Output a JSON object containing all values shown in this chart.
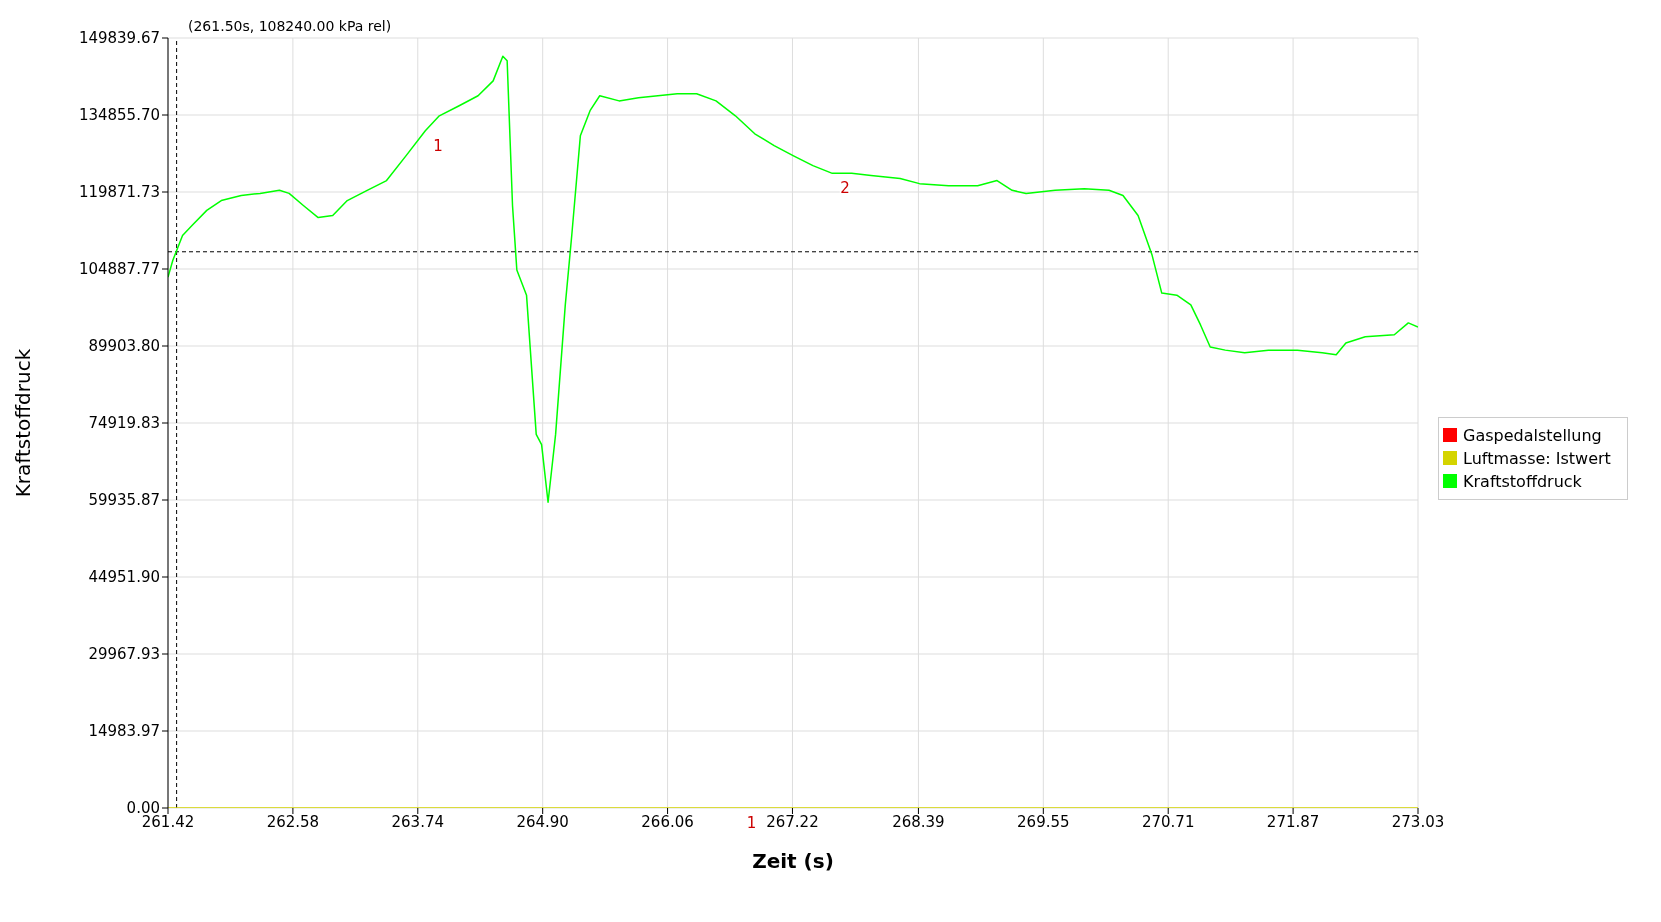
{
  "chart_data": {
    "type": "line",
    "xlabel": "Zeit (s)",
    "ylabel": "Kraftstoffdruck",
    "annotations": [
      "(261.50s, 108240.00 kPa rel)",
      {
        "text": "1",
        "x": 263.81,
        "y": 131800
      },
      {
        "text": "2",
        "x": 267.59,
        "y": 123500
      },
      {
        "text": "1",
        "x": 266.72,
        "y": 0
      }
    ],
    "xlim": [
      261.42,
      273.03
    ],
    "xticks": [
      {
        "value": 261.42,
        "label": "261.42"
      },
      {
        "value": 262.58,
        "label": "262.58"
      },
      {
        "value": 263.74,
        "label": "263.74"
      },
      {
        "value": 264.9,
        "label": "264.90"
      },
      {
        "value": 266.06,
        "label": "266.06"
      },
      {
        "value": 267.22,
        "label": "267.22"
      },
      {
        "value": 268.39,
        "label": "268.39"
      },
      {
        "value": 269.55,
        "label": "269.55"
      },
      {
        "value": 270.71,
        "label": "270.71"
      },
      {
        "value": 271.87,
        "label": "271.87"
      },
      {
        "value": 273.03,
        "label": "273.03"
      }
    ],
    "ylim": [
      0,
      149839.67
    ],
    "yticks": [
      {
        "value": 0,
        "label": "0.00"
      },
      {
        "value": 14983.97,
        "label": "14983.97"
      },
      {
        "value": 29967.93,
        "label": "29967.93"
      },
      {
        "value": 44951.9,
        "label": "44951.90"
      },
      {
        "value": 59935.87,
        "label": "59935.87"
      },
      {
        "value": 74919.83,
        "label": "74919.83"
      },
      {
        "value": 89903.8,
        "label": "89903.80"
      },
      {
        "value": 104887.77,
        "label": "104887.77"
      },
      {
        "value": 119871.73,
        "label": "119871.73"
      },
      {
        "value": 134855.7,
        "label": "134855.70"
      },
      {
        "value": 149839.67,
        "label": "149839.67"
      }
    ],
    "grid": true,
    "legend": "right",
    "marker": "none",
    "line_style": "solid",
    "ref_lines": [
      {
        "axis": "x",
        "value": 261.5,
        "color": "#000000",
        "line_style": "dashed"
      },
      {
        "axis": "y",
        "value": 108240,
        "color": "#000000",
        "line_style": "dashed"
      }
    ],
    "series": [
      {
        "name": "Gaspedalstellung",
        "color": "#ff0000"
      },
      {
        "name": "Luftmasse: Istwert",
        "color": "#d4d400",
        "x": [
          261.42,
          273.03
        ],
        "values": [
          0,
          0
        ]
      },
      {
        "name": "Kraftstoffdruck",
        "color": "#00ff00",
        "x": [
          261.42,
          261.465,
          261.555,
          261.645,
          261.78,
          261.915,
          262.1,
          262.275,
          262.455,
          262.545,
          262.68,
          262.815,
          262.95,
          263.085,
          263.27,
          263.45,
          263.63,
          263.81,
          263.94,
          264.12,
          264.3,
          264.44,
          264.53,
          264.57,
          264.62,
          264.66,
          264.75,
          264.84,
          264.89,
          264.95,
          265.02,
          265.11,
          265.17,
          265.25,
          265.34,
          265.43,
          265.61,
          265.79,
          265.97,
          266.15,
          266.33,
          266.51,
          266.69,
          266.87,
          267.05,
          267.23,
          267.41,
          267.59,
          267.77,
          267.95,
          268.22,
          268.4,
          268.67,
          268.94,
          269.12,
          269.26,
          269.39,
          269.66,
          269.93,
          270.16,
          270.29,
          270.43,
          270.56,
          270.65,
          270.79,
          270.92,
          271.01,
          271.1,
          271.24,
          271.42,
          271.64,
          271.91,
          272.14,
          272.27,
          272.36,
          272.54,
          272.81,
          272.94,
          273.03
        ],
        "values": [
          103300,
          106600,
          111400,
          113400,
          116300,
          118200,
          119200,
          119600,
          120200,
          119600,
          117200,
          114900,
          115300,
          118200,
          120200,
          122100,
          126900,
          131800,
          134700,
          136600,
          138600,
          141500,
          146300,
          145400,
          117200,
          104700,
          99800,
          72700,
          70700,
          59500,
          72700,
          97900,
          111400,
          130800,
          135700,
          138600,
          137600,
          138200,
          138600,
          139000,
          139000,
          137600,
          134700,
          131200,
          128900,
          126900,
          125000,
          123500,
          123500,
          123100,
          122500,
          121500,
          121100,
          121100,
          122100,
          120200,
          119600,
          120200,
          120500,
          120200,
          119200,
          115300,
          107600,
          100200,
          99800,
          97900,
          94000,
          89700,
          89100,
          88600,
          89100,
          89100,
          88600,
          88200,
          90500,
          91700,
          92100,
          94400,
          93600
        ]
      }
    ]
  }
}
